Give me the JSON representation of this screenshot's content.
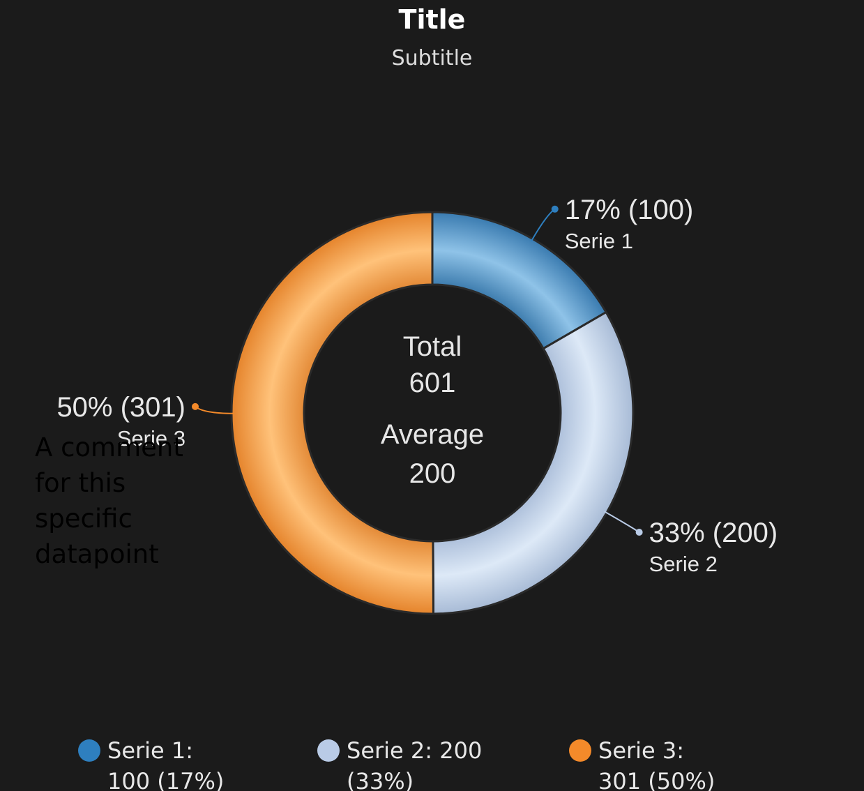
{
  "title": "Title",
  "subtitle": "Subtitle",
  "comment": "A comment for this specific datapoint",
  "center": {
    "total_label": "Total",
    "total_value": "601",
    "average_label": "Average",
    "average_value": "200"
  },
  "chart_data": {
    "type": "pie",
    "variant": "donut",
    "title": "Title",
    "subtitle": "Subtitle",
    "series": [
      {
        "name": "Serie 1",
        "value": 100,
        "percent": "17%",
        "color": "#2e7fbf",
        "slice_label": "17% (100)",
        "legend_label": "Serie 1: 100 (17%)"
      },
      {
        "name": "Serie 2",
        "value": 200,
        "percent": "33%",
        "color": "#b9cbe6",
        "slice_label": "33% (200)",
        "legend_label": "Serie 2: 200 (33%)"
      },
      {
        "name": "Serie 3",
        "value": 301,
        "percent": "50%",
        "color": "#f48a2a",
        "slice_label": "50% (301)",
        "legend_label": "Serie 3: 301 (50%)"
      }
    ],
    "total": 601,
    "average": 200,
    "legend_position": "bottom"
  }
}
